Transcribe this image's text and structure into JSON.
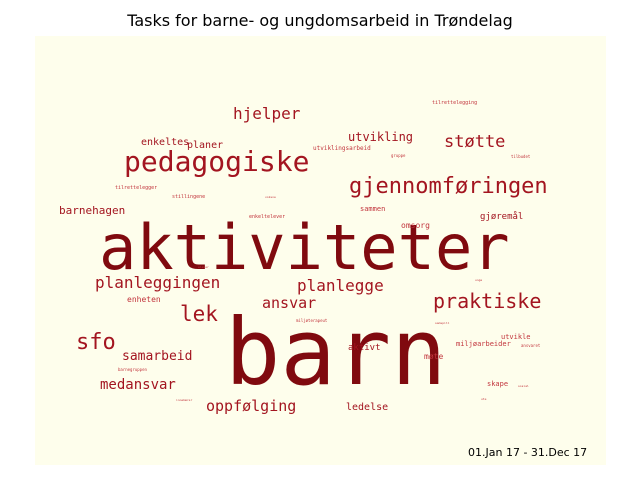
{
  "title": "Tasks for barne- og ungdomsarbeid in Trøndelag",
  "date_range": "01.Jan 17 - 31.Dec 17",
  "colors": {
    "background": "#fefeec",
    "word_dark": "#800a0f",
    "word_mid": "#a31520",
    "word_light": "#c2353d"
  },
  "chart_data": {
    "type": "wordcloud",
    "title": "Tasks for barne- og ungdomsarbeid in Trøndelag",
    "words": [
      {
        "text": "barn",
        "weight": 100
      },
      {
        "text": "aktiviteter",
        "weight": 80
      },
      {
        "text": "pedagogiske",
        "weight": 34
      },
      {
        "text": "gjennomføringen",
        "weight": 28
      },
      {
        "text": "praktiske",
        "weight": 25
      },
      {
        "text": "sfo",
        "weight": 25
      },
      {
        "text": "lek",
        "weight": 24
      },
      {
        "text": "planleggingen",
        "weight": 20
      },
      {
        "text": "planlegge",
        "weight": 19
      },
      {
        "text": "hjelper",
        "weight": 19
      },
      {
        "text": "støtte",
        "weight": 19
      },
      {
        "text": "ansvar",
        "weight": 18
      },
      {
        "text": "oppfølging",
        "weight": 18
      },
      {
        "text": "medansvar",
        "weight": 16
      },
      {
        "text": "samarbeid",
        "weight": 14
      },
      {
        "text": "utvikling",
        "weight": 13
      },
      {
        "text": "barnehagen",
        "weight": 11
      },
      {
        "text": "planer",
        "weight": 11
      },
      {
        "text": "enkeltes",
        "weight": 10
      },
      {
        "text": "ledelse",
        "weight": 10
      },
      {
        "text": "aktivt",
        "weight": 9
      },
      {
        "text": "gjøremål",
        "weight": 9
      },
      {
        "text": "enheten",
        "weight": 8
      },
      {
        "text": "omsorg",
        "weight": 8
      },
      {
        "text": "sammen",
        "weight": 7
      },
      {
        "text": "utvikle",
        "weight": 7
      },
      {
        "text": "møte",
        "weight": 7
      },
      {
        "text": "miljøarbeider",
        "weight": 6
      },
      {
        "text": "skape",
        "weight": 6
      },
      {
        "text": "utviklingsarbeid",
        "weight": 6
      },
      {
        "text": "tilrettelegging",
        "weight": 5
      },
      {
        "text": "tilrettelegger",
        "weight": 5
      },
      {
        "text": "stillingene",
        "weight": 5
      },
      {
        "text": "enkeltelever",
        "weight": 5
      },
      {
        "text": "gruppe",
        "weight": 4
      },
      {
        "text": "barnegruppen",
        "weight": 4
      },
      {
        "text": "miljøterapeut",
        "weight": 4
      },
      {
        "text": "ansvaret",
        "weight": 4
      },
      {
        "text": "tilbudet",
        "weight": 4
      },
      {
        "text": "innebærer",
        "weight": 3
      },
      {
        "text": "voksne",
        "weight": 3
      },
      {
        "text": "elever",
        "weight": 3
      },
      {
        "text": "unge",
        "weight": 3
      },
      {
        "text": "sosial",
        "weight": 3
      },
      {
        "text": "ute",
        "weight": 3
      },
      {
        "text": "samspill",
        "weight": 3
      }
    ]
  }
}
